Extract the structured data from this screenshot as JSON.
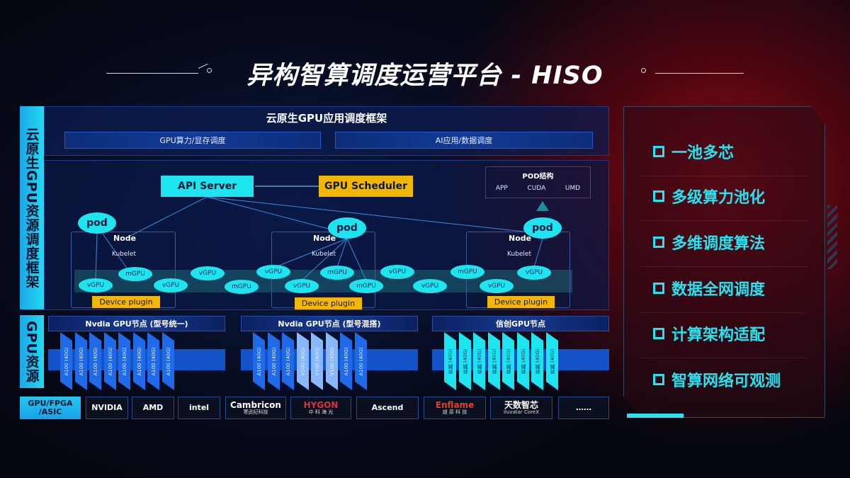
{
  "title": "异构智算调度运营平台 - HISO",
  "left_labels": {
    "framework": "云原生GPU资源调度框架",
    "gpu": "GPU资源"
  },
  "top_panel": {
    "title": "云原生GPU应用调度框架",
    "sub": [
      "GPU算力/显存调度",
      "AI应用/数据调度"
    ]
  },
  "scheduler": {
    "api_server": "API Server",
    "gpu_scheduler": "GPU Scheduler",
    "pod_struct": {
      "title": "POD结构",
      "items": [
        "APP",
        "CUDA",
        "UMD"
      ]
    },
    "pod": "pod",
    "node": "Node",
    "kubelet": "Kubelet",
    "device_plugin": "Device plugin",
    "units": [
      "vGPU",
      "mGPU",
      "vGPU",
      "vGPU",
      "mGPU",
      "vGPU",
      "vGPU",
      "mGPU",
      "mGPU",
      "vGPU",
      "vGPU",
      "mGPU",
      "vGPU",
      "vGPU"
    ]
  },
  "gpu_groups": [
    {
      "title": "Nvdia GPU节点 (型号统一)",
      "chips": [
        "A100 (40G)",
        "A100 (40G)",
        "A100 (40G)",
        "A100 (40G)",
        "A100 (40G)",
        "A100 (40G)",
        "A100 (40G)",
        "A100 (40G)"
      ]
    },
    {
      "title": "Nvdia GPU节点 (型号混搭)",
      "chips": [
        "A100 (40G)",
        "A100 (40G)",
        "A100 (40G)",
        "V100 (40G)",
        "V100 (40G)",
        "V100 (40G)",
        "A100 (40G)",
        "A100 (40G)"
      ]
    },
    {
      "title": "信创GPU节点",
      "chips": [
        "昇腾 (40G)",
        "昇腾 (40G)",
        "昇腾 (40G)",
        "昇腾 (40G)",
        "昇腾 (40G)",
        "昇腾 (40G)",
        "昇腾 (40G)",
        "昇腾 (40G)"
      ]
    }
  ],
  "vendors": {
    "label": "GPU/FPGA /ASIC",
    "items": [
      {
        "name": "NVIDIA"
      },
      {
        "name": "AMD"
      },
      {
        "name": "intel"
      },
      {
        "name": "Cambricon",
        "sub": "寒武纪科技"
      },
      {
        "name": "HYGON",
        "sub": "中 科 海 光"
      },
      {
        "name": "Ascend"
      },
      {
        "name": "Enflame",
        "sub": "燧 原 科 技"
      },
      {
        "name": "天数智芯",
        "sub": "Iluvatar CoreX"
      },
      {
        "name": "……"
      }
    ]
  },
  "features": [
    "一池多芯",
    "多级算力池化",
    "多维调度算法",
    "数据全网调度",
    "计算架构适配",
    "智算网络可观测"
  ],
  "colors": {
    "cyan": "#1de4ee",
    "yellow": "#f2b705",
    "chip_blue": "#1e6ae8",
    "chip_light": "#8ab8ff",
    "chip_cyan": "#1de4ee"
  }
}
